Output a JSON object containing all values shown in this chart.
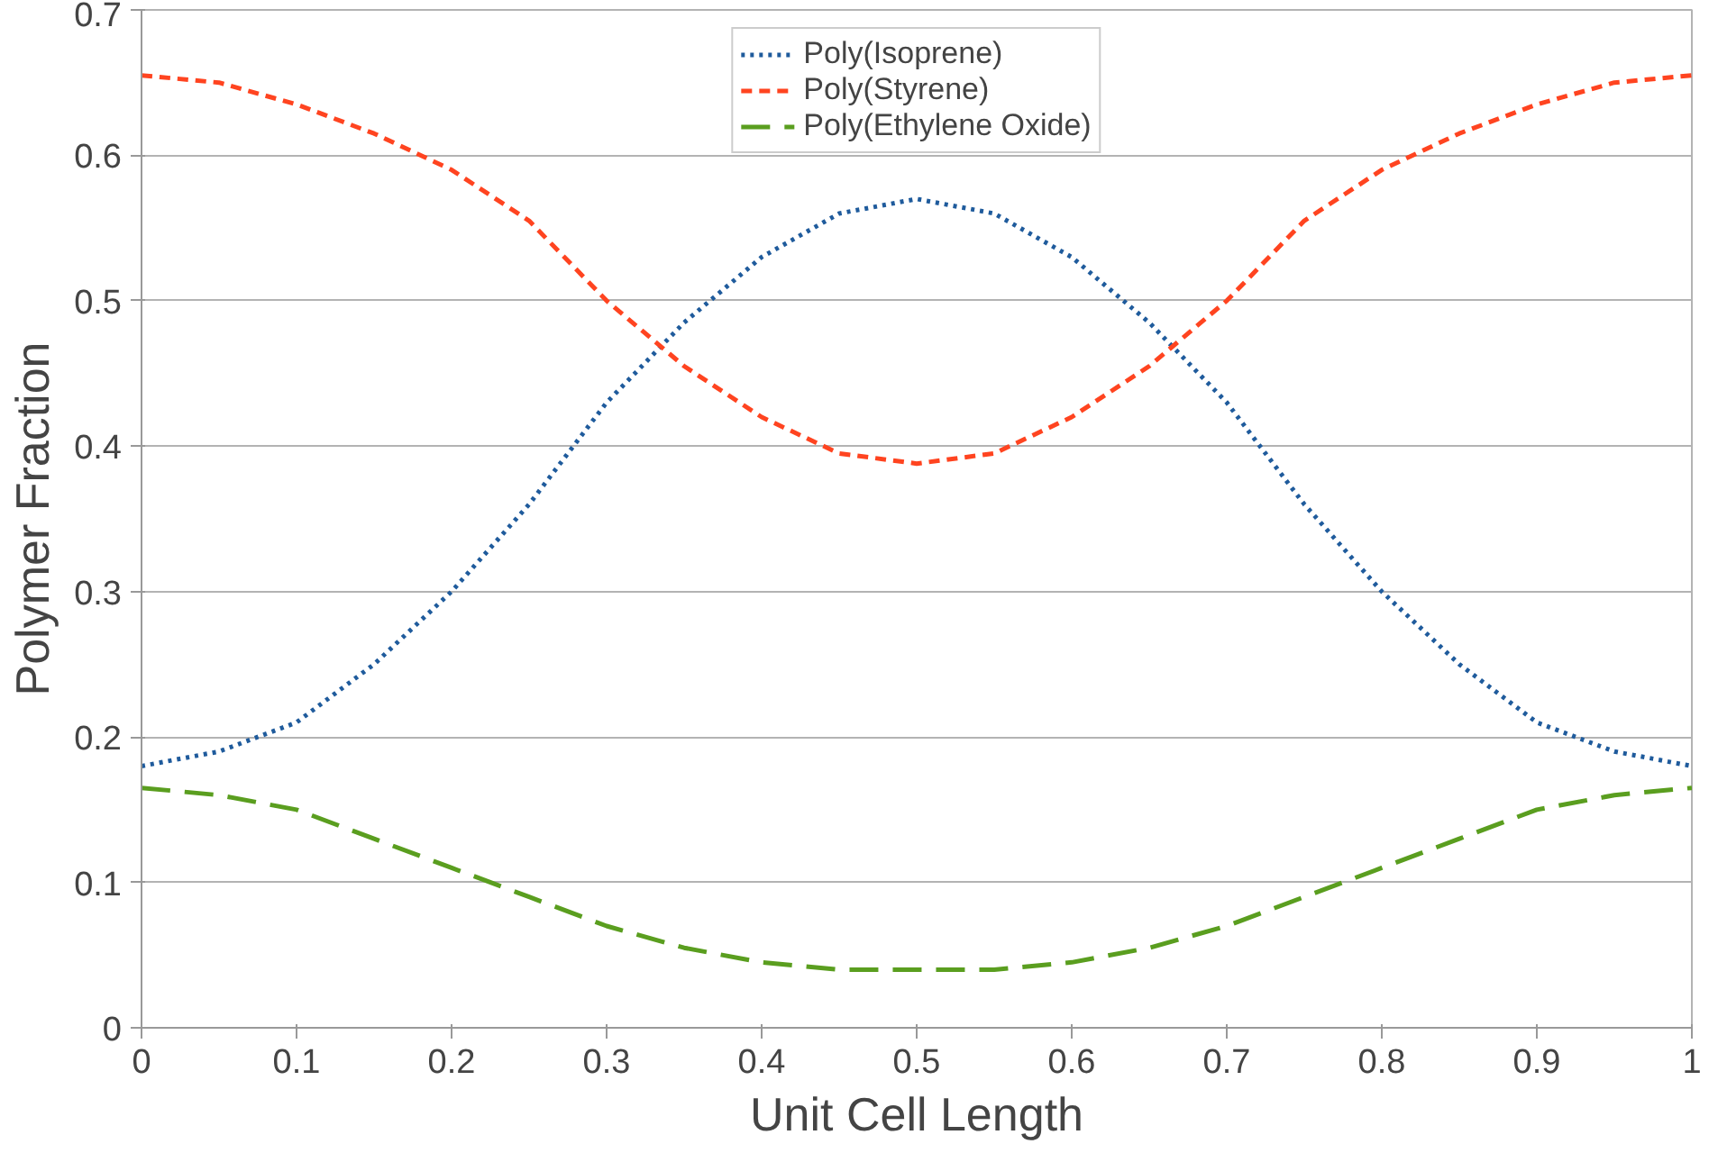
{
  "chart_data": {
    "type": "line",
    "xlabel": "Unit Cell Length",
    "ylabel": "Polymer Fraction",
    "x": [
      0,
      0.05,
      0.1,
      0.15,
      0.2,
      0.25,
      0.3,
      0.35,
      0.4,
      0.45,
      0.5,
      0.55,
      0.6,
      0.65,
      0.7,
      0.75,
      0.8,
      0.85,
      0.9,
      0.95,
      1
    ],
    "series": [
      {
        "name": "Poly(Isoprene)",
        "color": "#1f5b9c",
        "line_style": "dotted",
        "values": [
          0.18,
          0.19,
          0.21,
          0.25,
          0.3,
          0.36,
          0.43,
          0.485,
          0.53,
          0.56,
          0.57,
          0.56,
          0.53,
          0.485,
          0.43,
          0.36,
          0.3,
          0.25,
          0.21,
          0.19,
          0.18
        ]
      },
      {
        "name": "Poly(Styrene)",
        "color": "#ff4420",
        "line_style": "dashed",
        "values": [
          0.655,
          0.65,
          0.635,
          0.615,
          0.59,
          0.555,
          0.5,
          0.455,
          0.42,
          0.395,
          0.388,
          0.395,
          0.42,
          0.455,
          0.5,
          0.555,
          0.59,
          0.615,
          0.635,
          0.65,
          0.655
        ]
      },
      {
        "name": "Poly(Ethylene Oxide)",
        "color": "#5a9e1f",
        "line_style": "dashed",
        "values": [
          0.165,
          0.16,
          0.15,
          0.13,
          0.11,
          0.09,
          0.07,
          0.055,
          0.045,
          0.04,
          0.04,
          0.04,
          0.045,
          0.055,
          0.07,
          0.09,
          0.11,
          0.13,
          0.15,
          0.16,
          0.165
        ]
      }
    ],
    "xlim": [
      0,
      1
    ],
    "ylim": [
      0,
      0.7
    ],
    "xticks": [
      0,
      0.1,
      0.2,
      0.3,
      0.4,
      0.5,
      0.6,
      0.7,
      0.8,
      0.9,
      1
    ],
    "yticks": [
      0,
      0.1,
      0.2,
      0.3,
      0.4,
      0.5,
      0.6,
      0.7
    ],
    "grid": "y",
    "legend": "top",
    "marker": "none"
  }
}
